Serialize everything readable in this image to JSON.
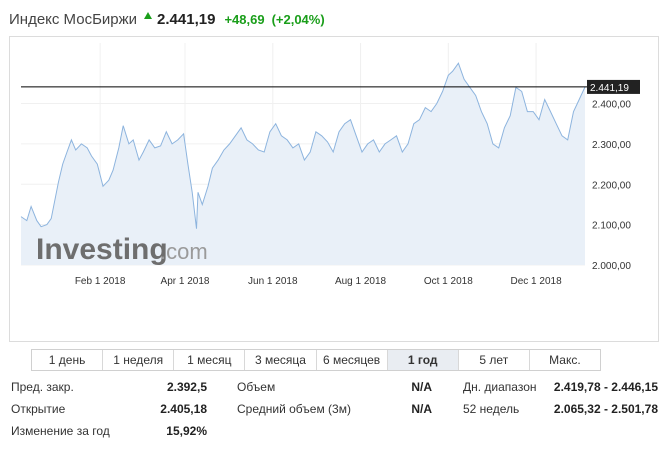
{
  "header": {
    "title": "Индекс МосБиржи",
    "price": "2.441,19",
    "change": "+48,69",
    "change_pct": "(+2,04%)",
    "up_color": "#1a9e1a"
  },
  "logo": {
    "main": "Investing",
    "suffix": ".com"
  },
  "timeframes": [
    {
      "label": "1 день",
      "active": false
    },
    {
      "label": "1 неделя",
      "active": false
    },
    {
      "label": "1 месяц",
      "active": false
    },
    {
      "label": "3 месяца",
      "active": false
    },
    {
      "label": "6 месяцев",
      "active": false
    },
    {
      "label": "1 год",
      "active": true
    },
    {
      "label": "5 лет",
      "active": false
    },
    {
      "label": "Макс.",
      "active": false
    }
  ],
  "stats": {
    "prev_close_label": "Пред. закр.",
    "prev_close": "2.392,5",
    "open_label": "Открытие",
    "open": "2.405,18",
    "year_change_label": "Изменение за год",
    "year_change": "15,92%",
    "volume_label": "Объем",
    "volume": "N/A",
    "avg_volume_label": "Средний объем (3м)",
    "avg_volume": "N/A",
    "day_range_label": "Дн. диапазон",
    "day_range": "2.419,78 - 2.446,15",
    "week52_label": "52 недель",
    "week52": "2.065,32 - 2.501,78"
  },
  "chart_data": {
    "type": "area",
    "ylim": [
      2000,
      2550
    ],
    "y_ticks": [
      2000,
      2100,
      2200,
      2300,
      2400
    ],
    "y_tick_labels": [
      "2.000,00",
      "2.100,00",
      "2.200,00",
      "2.300,00",
      "2.400,00"
    ],
    "x_ticks": [
      "2018-02-01",
      "2018-04-01",
      "2018-06-01",
      "2018-08-01",
      "2018-10-01",
      "2018-12-01"
    ],
    "x_tick_labels": [
      "Feb 1 2018",
      "Apr 1 2018",
      "Jun 1 2018",
      "Aug 1 2018",
      "Oct 1 2018",
      "Dec 1 2018"
    ],
    "xlim": [
      "2017-12-08",
      "2019-01-04"
    ],
    "current_value": 2441.19,
    "current_label": "2.441,19",
    "line_color": "#8db4de",
    "fill_color": "#e9f0f8",
    "series": [
      {
        "x": [
          "2017-12-08",
          "2017-12-12",
          "2017-12-15",
          "2017-12-19",
          "2017-12-22",
          "2017-12-26",
          "2017-12-29",
          "2018-01-03",
          "2018-01-06",
          "2018-01-09",
          "2018-01-12",
          "2018-01-15",
          "2018-01-19",
          "2018-01-23",
          "2018-01-26",
          "2018-01-30",
          "2018-02-03",
          "2018-02-07",
          "2018-02-10",
          "2018-02-14",
          "2018-02-17",
          "2018-02-21",
          "2018-02-24",
          "2018-02-28",
          "2018-03-03",
          "2018-03-07",
          "2018-03-11",
          "2018-03-15",
          "2018-03-19",
          "2018-03-23",
          "2018-03-27",
          "2018-03-31",
          "2018-04-03",
          "2018-04-06",
          "2018-04-09",
          "2018-04-10",
          "2018-04-13",
          "2018-04-17",
          "2018-04-20",
          "2018-04-24",
          "2018-04-28",
          "2018-05-02",
          "2018-05-06",
          "2018-05-10",
          "2018-05-14",
          "2018-05-18",
          "2018-05-22",
          "2018-05-26",
          "2018-05-30",
          "2018-06-03",
          "2018-06-07",
          "2018-06-11",
          "2018-06-15",
          "2018-06-19",
          "2018-06-23",
          "2018-06-27",
          "2018-07-01",
          "2018-07-05",
          "2018-07-09",
          "2018-07-13",
          "2018-07-17",
          "2018-07-21",
          "2018-07-25",
          "2018-07-29",
          "2018-08-02",
          "2018-08-06",
          "2018-08-10",
          "2018-08-14",
          "2018-08-18",
          "2018-08-22",
          "2018-08-26",
          "2018-08-30",
          "2018-09-03",
          "2018-09-07",
          "2018-09-11",
          "2018-09-15",
          "2018-09-19",
          "2018-09-23",
          "2018-09-27",
          "2018-10-01",
          "2018-10-04",
          "2018-10-08",
          "2018-10-12",
          "2018-10-16",
          "2018-10-20",
          "2018-10-24",
          "2018-10-28",
          "2018-11-01",
          "2018-11-05",
          "2018-11-09",
          "2018-11-13",
          "2018-11-17",
          "2018-11-21",
          "2018-11-25",
          "2018-11-29",
          "2018-12-03",
          "2018-12-07",
          "2018-12-11",
          "2018-12-15",
          "2018-12-19",
          "2018-12-23",
          "2018-12-27",
          "2018-12-31",
          "2019-01-04"
        ],
        "y": [
          2120,
          2110,
          2145,
          2110,
          2095,
          2100,
          2115,
          2205,
          2250,
          2280,
          2310,
          2285,
          2300,
          2290,
          2270,
          2250,
          2195,
          2210,
          2235,
          2290,
          2345,
          2300,
          2310,
          2260,
          2280,
          2310,
          2290,
          2295,
          2330,
          2300,
          2310,
          2325,
          2250,
          2180,
          2090,
          2180,
          2150,
          2195,
          2240,
          2260,
          2285,
          2300,
          2320,
          2340,
          2310,
          2300,
          2285,
          2280,
          2330,
          2350,
          2320,
          2310,
          2290,
          2300,
          2260,
          2280,
          2330,
          2320,
          2305,
          2280,
          2330,
          2350,
          2360,
          2320,
          2280,
          2300,
          2310,
          2280,
          2300,
          2310,
          2320,
          2280,
          2300,
          2350,
          2360,
          2390,
          2380,
          2400,
          2430,
          2470,
          2480,
          2500,
          2460,
          2440,
          2420,
          2380,
          2350,
          2300,
          2290,
          2340,
          2370,
          2440,
          2430,
          2380,
          2380,
          2360,
          2410,
          2380,
          2350,
          2320,
          2310,
          2380,
          2410,
          2441.19
        ]
      }
    ]
  }
}
